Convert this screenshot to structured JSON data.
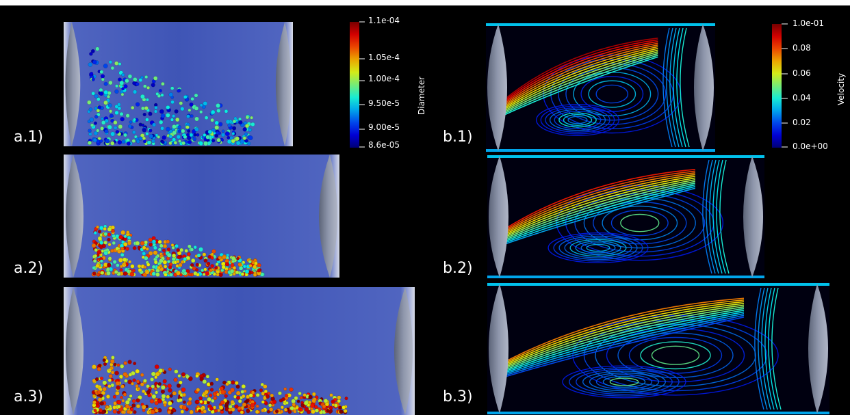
{
  "panels": {
    "a1": "a.1)",
    "a2": "a.2)",
    "a3": "a.3)",
    "b1": "b.1)",
    "b2": "b.2)",
    "b3": "b.3)"
  },
  "diameter_colorbar": {
    "title": "Diameter",
    "ticks": [
      "1.1e-04",
      "1.05e-4",
      "1.00e-4",
      "9.50e-5",
      "9.00e-5",
      "8.6e-05"
    ]
  },
  "velocity_colorbar": {
    "title": "Velocity",
    "ticks": [
      "1.0e-01",
      "0.08",
      "0.06",
      "0.04",
      "0.02",
      "0.0e+00"
    ]
  },
  "colors": {
    "background": "#000000",
    "cylinder_fill": "#3f55b6",
    "end_cap": "#8e96ab",
    "colormap_low": "#00008f",
    "colormap_high": "#b50000"
  }
}
